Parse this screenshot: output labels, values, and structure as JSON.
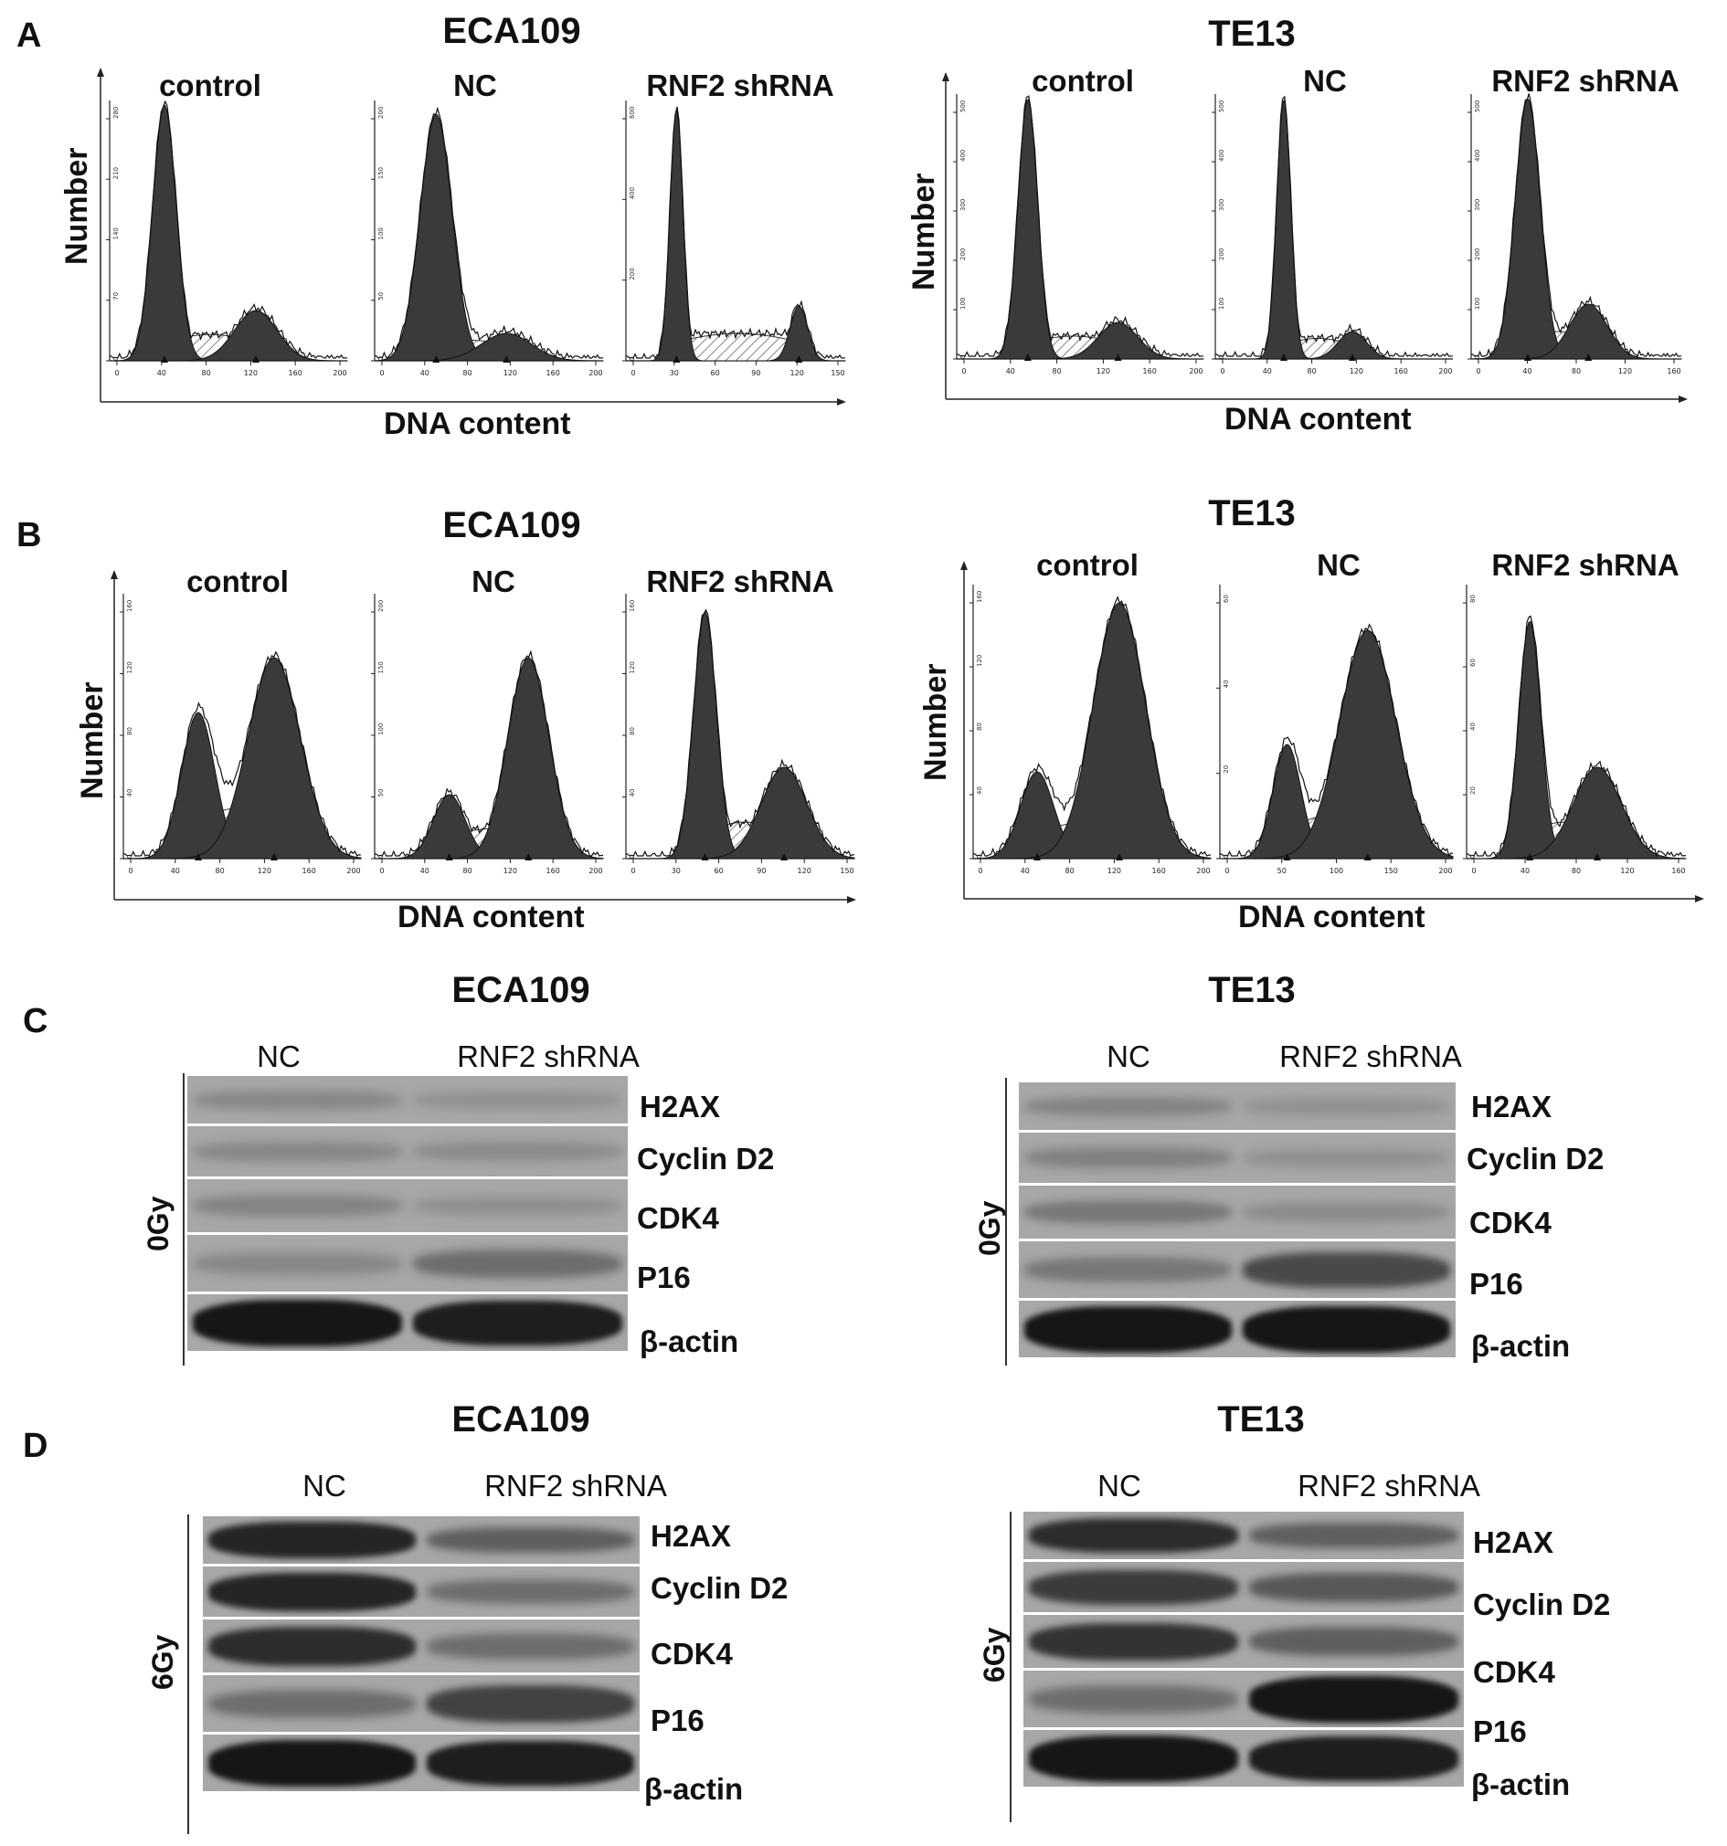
{
  "panels": {
    "A": {
      "label": "A",
      "groups": [
        {
          "title": "ECA109",
          "ylabel": "Number",
          "xlabel": "DNA content",
          "plots": [
            {
              "header": "control",
              "xticks": [
                "0",
                "40",
                "80",
                "120",
                "160",
                "200"
              ],
              "yticks": [
                "0",
                "70",
                "140",
                "210",
                "280"
              ]
            },
            {
              "header": "NC",
              "xticks": [
                "0",
                "40",
                "80",
                "120",
                "160",
                "200"
              ],
              "yticks": [
                "0",
                "50",
                "100",
                "150",
                "200"
              ]
            },
            {
              "header": "RNF2 shRNA",
              "xticks": [
                "0",
                "30",
                "60",
                "90",
                "120",
                "150"
              ],
              "yticks": [
                "0",
                "200",
                "400",
                "600"
              ]
            }
          ]
        },
        {
          "title": "TE13",
          "ylabel": "Number",
          "xlabel": "DNA content",
          "plots": [
            {
              "header": "control",
              "xticks": [
                "0",
                "40",
                "80",
                "120",
                "160",
                "200"
              ],
              "yticks": [
                "0",
                "100",
                "200",
                "300",
                "400",
                "500"
              ]
            },
            {
              "header": "NC",
              "xticks": [
                "0",
                "40",
                "80",
                "120",
                "160",
                "200"
              ],
              "yticks": [
                "0",
                "100",
                "200",
                "300",
                "400",
                "500"
              ]
            },
            {
              "header": "RNF2 shRNA",
              "xticks": [
                "0",
                "40",
                "80",
                "120",
                "160"
              ],
              "yticks": [
                "0",
                "100",
                "200",
                "300",
                "400",
                "500"
              ]
            }
          ]
        }
      ]
    },
    "B": {
      "label": "B",
      "groups": [
        {
          "title": "ECA109",
          "ylabel": "Number",
          "xlabel": "DNA content",
          "plots": [
            {
              "header": "control",
              "xticks": [
                "0",
                "40",
                "80",
                "120",
                "160",
                "200"
              ],
              "yticks": [
                "0",
                "40",
                "80",
                "120",
                "160"
              ]
            },
            {
              "header": "NC",
              "xticks": [
                "0",
                "40",
                "80",
                "120",
                "160",
                "200"
              ],
              "yticks": [
                "0",
                "50",
                "100",
                "150",
                "200"
              ]
            },
            {
              "header": "RNF2 shRNA",
              "xticks": [
                "0",
                "30",
                "60",
                "90",
                "120",
                "150"
              ],
              "yticks": [
                "0",
                "40",
                "80",
                "120",
                "160"
              ]
            }
          ]
        },
        {
          "title": "TE13",
          "ylabel": "Number",
          "xlabel": "DNA content",
          "plots": [
            {
              "header": "control",
              "xticks": [
                "0",
                "40",
                "80",
                "120",
                "160",
                "200"
              ],
              "yticks": [
                "0",
                "40",
                "80",
                "120",
                "160"
              ]
            },
            {
              "header": "NC",
              "xticks": [
                "0",
                "50",
                "100",
                "150",
                "200"
              ],
              "yticks": [
                "0",
                "20",
                "40",
                "60"
              ]
            },
            {
              "header": "RNF2 shRNA",
              "xticks": [
                "0",
                "40",
                "80",
                "120",
                "160"
              ],
              "yticks": [
                "0",
                "20",
                "40",
                "60",
                "80"
              ]
            }
          ]
        }
      ]
    },
    "C": {
      "label": "C",
      "dose": "0Gy",
      "groups": [
        {
          "title": "ECA109",
          "lanes": [
            "NC",
            "RNF2 shRNA"
          ]
        },
        {
          "title": "TE13",
          "lanes": [
            "NC",
            "RNF2 shRNA"
          ]
        }
      ],
      "proteins": [
        "H2AX",
        "Cyclin D2",
        "CDK4",
        "P16",
        "β-actin"
      ]
    },
    "D": {
      "label": "D",
      "dose": "6Gy",
      "groups": [
        {
          "title": "ECA109",
          "lanes": [
            "NC",
            "RNF2 shRNA"
          ]
        },
        {
          "title": "TE13",
          "lanes": [
            "NC",
            "RNF2 shRNA"
          ]
        }
      ],
      "proteins": [
        "H2AX",
        "Cyclin D2",
        "CDK4",
        "P16",
        "β-actin"
      ]
    }
  }
}
